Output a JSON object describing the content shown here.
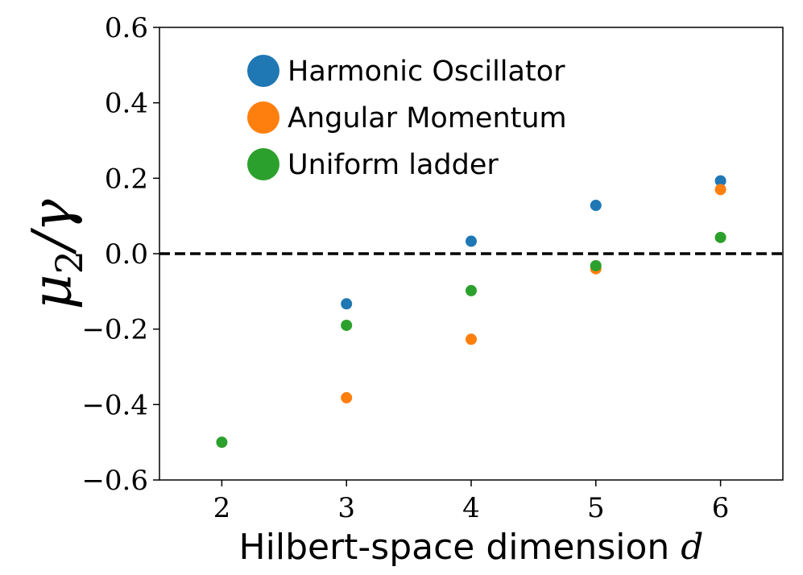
{
  "chart_data": {
    "type": "scatter",
    "xlabel": "Hilbert-space dimension",
    "xlabel_var": "d",
    "ylabel_main": "μ",
    "ylabel_sub": "2",
    "ylabel_div": "/γ",
    "xlim": [
      1.5,
      6.5
    ],
    "ylim": [
      -0.6,
      0.6
    ],
    "xticks": [
      2,
      3,
      4,
      5,
      6
    ],
    "yticks": [
      -0.6,
      -0.4,
      -0.2,
      0.0,
      0.2,
      0.4,
      0.6
    ],
    "ytick_labels": [
      "−0.6",
      "−0.4",
      "−0.2",
      "0.0",
      "0.2",
      "0.4",
      "0.6"
    ],
    "xtick_labels": [
      "2",
      "3",
      "4",
      "5",
      "6"
    ],
    "reference_line": {
      "y": 0.0,
      "style": "dashed",
      "color": "#000000"
    },
    "legend_position": "upper-left",
    "series": [
      {
        "name": "Harmonic Oscillator",
        "color": "#1f77b4",
        "points": [
          [
            3,
            -0.133
          ],
          [
            4,
            0.033
          ],
          [
            5,
            0.128
          ],
          [
            6,
            0.193
          ]
        ]
      },
      {
        "name": "Angular Momentum",
        "color": "#ff7f0e",
        "points": [
          [
            3,
            -0.382
          ],
          [
            4,
            -0.227
          ],
          [
            5,
            -0.04
          ],
          [
            6,
            0.17
          ]
        ]
      },
      {
        "name": "Uniform ladder",
        "color": "#2ca02c",
        "points": [
          [
            2,
            -0.5
          ],
          [
            3,
            -0.19
          ],
          [
            4,
            -0.098
          ],
          [
            5,
            -0.032
          ],
          [
            6,
            0.043
          ]
        ]
      }
    ]
  }
}
